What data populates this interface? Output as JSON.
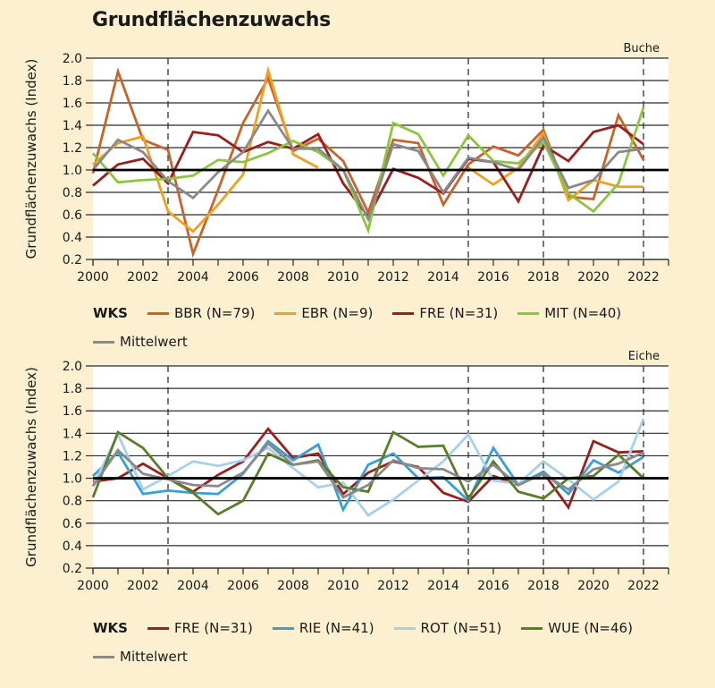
{
  "title": "Grundflächenzuwachs",
  "chart_data": [
    {
      "type": "line",
      "panel": "Buche",
      "title": "Buche",
      "xlabel": "",
      "ylabel": "Grundflächenzuwachs (Index)",
      "x": [
        2000,
        2001,
        2002,
        2003,
        2004,
        2005,
        2006,
        2007,
        2008,
        2009,
        2010,
        2011,
        2012,
        2013,
        2014,
        2015,
        2016,
        2017,
        2018,
        2019,
        2020,
        2021,
        2022
      ],
      "xticks": [
        2000,
        2002,
        2004,
        2006,
        2008,
        2010,
        2012,
        2014,
        2016,
        2018,
        2020,
        2022
      ],
      "xlim": [
        2000,
        2023
      ],
      "ylim": [
        0.2,
        2.0
      ],
      "yticks": [
        "0.2",
        "0.4",
        "0.6",
        "0.8",
        "1.0",
        "1.2",
        "1.4",
        "1.6",
        "1.8",
        "2.0"
      ],
      "reference_line": 1.0,
      "dashed_years": [
        2003,
        2015,
        2018,
        2022
      ],
      "grid": true,
      "legend_title": "WKS",
      "legend_position": "bottom",
      "series": [
        {
          "name": "BBR (N=79)",
          "color": "#c8642a",
          "values": [
            0.97,
            1.88,
            1.27,
            1.18,
            0.25,
            0.82,
            1.42,
            1.82,
            1.17,
            1.28,
            1.08,
            0.62,
            1.27,
            1.24,
            0.69,
            1.05,
            1.21,
            1.13,
            1.36,
            0.76,
            0.74,
            1.49,
            1.09
          ]
        },
        {
          "name": "EBR (N=9)",
          "color": "#f0a020",
          "values": [
            1.05,
            1.24,
            1.3,
            0.63,
            0.45,
            0.69,
            0.96,
            1.89,
            1.14,
            1.02,
            null,
            null,
            null,
            null,
            null,
            1.02,
            0.87,
            1.02,
            1.33,
            0.73,
            0.91,
            0.85,
            0.85
          ]
        },
        {
          "name": "FRE (N=31)",
          "color": "#9a1f1f",
          "values": [
            0.86,
            1.05,
            1.1,
            0.88,
            1.34,
            1.31,
            1.16,
            1.25,
            1.19,
            1.32,
            0.88,
            0.58,
            1.01,
            0.93,
            0.79,
            1.1,
            1.07,
            0.72,
            1.22,
            1.08,
            1.34,
            1.4,
            1.23
          ]
        },
        {
          "name": "MIT (N=40)",
          "color": "#8cc63f",
          "values": [
            1.15,
            0.89,
            0.91,
            0.92,
            0.95,
            1.09,
            1.07,
            1.15,
            1.26,
            1.16,
            1.0,
            0.46,
            1.42,
            1.32,
            0.95,
            1.31,
            1.08,
            1.06,
            1.25,
            0.79,
            0.63,
            0.88,
            1.56
          ]
        },
        {
          "name": "Mittelwert",
          "color": "#8a8a8a",
          "values": [
            1.0,
            1.27,
            1.16,
            0.9,
            0.75,
            0.98,
            1.16,
            1.53,
            1.19,
            1.19,
            1.0,
            0.56,
            1.23,
            1.17,
            0.8,
            1.11,
            1.07,
            1.0,
            1.29,
            0.84,
            0.91,
            1.16,
            1.19
          ]
        }
      ]
    },
    {
      "type": "line",
      "panel": "Eiche",
      "title": "Eiche",
      "xlabel": "",
      "ylabel": "Grundflächenzuwachs (Index)",
      "x": [
        2000,
        2001,
        2002,
        2003,
        2004,
        2005,
        2006,
        2007,
        2008,
        2009,
        2010,
        2011,
        2012,
        2013,
        2014,
        2015,
        2016,
        2017,
        2018,
        2019,
        2020,
        2021,
        2022
      ],
      "xticks": [
        2000,
        2002,
        2004,
        2006,
        2008,
        2010,
        2012,
        2014,
        2016,
        2018,
        2020,
        2022
      ],
      "xlim": [
        2000,
        2023
      ],
      "ylim": [
        0.2,
        2.0
      ],
      "yticks": [
        "0.2",
        "0.4",
        "0.6",
        "0.8",
        "1.0",
        "1.2",
        "1.4",
        "1.6",
        "1.8",
        "2.0"
      ],
      "reference_line": 1.0,
      "dashed_years": [
        2003,
        2015,
        2018,
        2022
      ],
      "grid": true,
      "legend_title": "WKS",
      "legend_position": "bottom",
      "series": [
        {
          "name": "FRE (N=31)",
          "color": "#9a1f1f",
          "values": [
            0.97,
            1.0,
            1.13,
            1.0,
            0.88,
            1.03,
            1.15,
            1.44,
            1.18,
            1.22,
            0.86,
            1.05,
            1.15,
            1.1,
            0.87,
            0.79,
            1.02,
            0.94,
            1.05,
            0.74,
            1.33,
            1.23,
            1.24
          ]
        },
        {
          "name": "RIE (N=41)",
          "color": "#3a9fd6",
          "values": [
            1.02,
            1.23,
            0.86,
            0.89,
            0.87,
            0.86,
            1.04,
            1.33,
            1.16,
            1.3,
            0.72,
            1.12,
            1.22,
            1.0,
            1.01,
            0.8,
            1.27,
            0.94,
            1.06,
            0.86,
            1.16,
            1.05,
            1.19
          ]
        },
        {
          "name": "ROT (N=51)",
          "color": "#a8d0ea",
          "values": [
            0.93,
            1.39,
            0.9,
            1.02,
            1.15,
            1.11,
            1.16,
            1.27,
            1.09,
            0.92,
            0.96,
            0.67,
            0.81,
            0.98,
            1.15,
            1.39,
            0.98,
            0.95,
            1.15,
            0.99,
            0.81,
            0.97,
            1.53
          ]
        },
        {
          "name": "WUE (N=46)",
          "color": "#5a7d2a",
          "values": [
            0.83,
            1.41,
            1.27,
            1.0,
            0.87,
            0.68,
            0.8,
            1.22,
            1.12,
            1.16,
            0.92,
            0.88,
            1.41,
            1.28,
            1.29,
            0.82,
            1.15,
            0.88,
            0.82,
            1.0,
            1.02,
            1.21,
            1.0
          ]
        },
        {
          "name": "Mittelwert",
          "color": "#8a8a8a",
          "values": [
            0.93,
            1.25,
            1.04,
            0.99,
            0.94,
            0.93,
            1.05,
            1.31,
            1.12,
            1.15,
            0.83,
            0.94,
            1.16,
            1.09,
            1.08,
            0.97,
            1.12,
            0.94,
            1.04,
            0.9,
            1.08,
            1.13,
            1.23
          ]
        }
      ]
    }
  ]
}
